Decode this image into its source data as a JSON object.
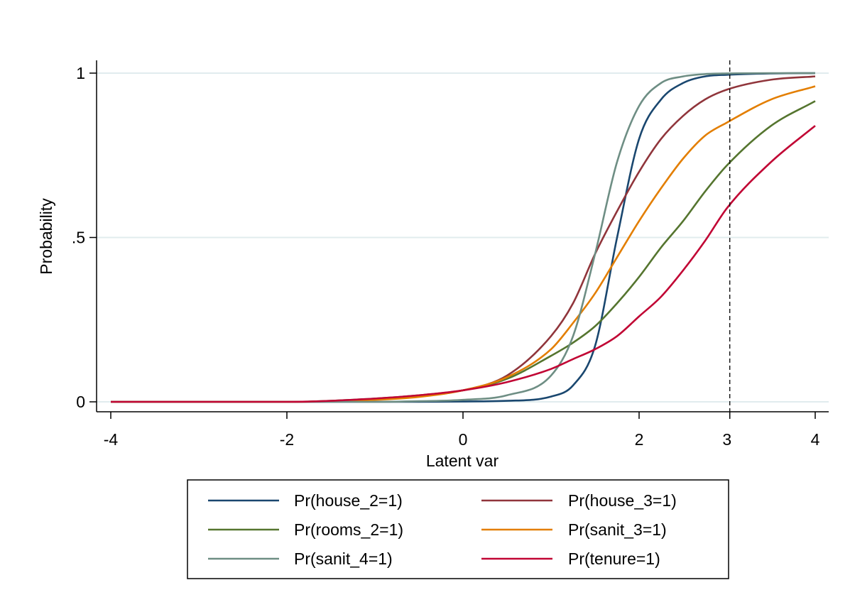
{
  "chart_data": {
    "type": "line",
    "title": "",
    "xlabel": "Latent var",
    "ylabel": "Probability",
    "xlim": [
      -4,
      4
    ],
    "ylim": [
      0,
      1
    ],
    "x_ticks": [
      {
        "value": -4,
        "label": "-4"
      },
      {
        "value": -2,
        "label": "-2"
      },
      {
        "value": 0,
        "label": "0"
      },
      {
        "value": 2,
        "label": "2"
      },
      {
        "value": 4,
        "label": "4"
      }
    ],
    "y_ticks": [
      {
        "value": 0,
        "label": "0"
      },
      {
        "value": 0.5,
        "label": ".5"
      },
      {
        "value": 1,
        "label": "1"
      }
    ],
    "grid": "horizontal",
    "reference_line": {
      "x": 3.03,
      "label": "3",
      "style": "dashed"
    },
    "legend": {
      "placement": "bottom",
      "columns": 2
    },
    "series": [
      {
        "name": "Pr(house_2=1)",
        "color": "#1a476f",
        "x": [
          -4,
          -3,
          -2,
          -1,
          -0.5,
          0,
          0.5,
          1,
          1.25,
          1.5,
          1.75,
          2,
          2.25,
          2.5,
          2.75,
          3,
          3.5,
          4
        ],
        "y": [
          0,
          0,
          0,
          0,
          0,
          0.001,
          0.003,
          0.016,
          0.05,
          0.17,
          0.5,
          0.8,
          0.92,
          0.97,
          0.99,
          0.995,
          0.999,
          1
        ]
      },
      {
        "name": "Pr(house_3=1)",
        "color": "#90353b",
        "x": [
          -4,
          -3,
          -2,
          -1,
          -0.5,
          0,
          0.5,
          1,
          1.25,
          1.5,
          1.75,
          2,
          2.25,
          2.5,
          2.75,
          3,
          3.5,
          4
        ],
        "y": [
          0,
          0,
          0,
          0.008,
          0.018,
          0.035,
          0.08,
          0.2,
          0.3,
          0.45,
          0.58,
          0.7,
          0.8,
          0.87,
          0.92,
          0.95,
          0.98,
          0.99
        ]
      },
      {
        "name": "Pr(rooms_2=1)",
        "color": "#55752f",
        "x": [
          -4,
          -3,
          -2,
          -1,
          -0.5,
          0,
          0.5,
          1,
          1.25,
          1.5,
          1.75,
          2,
          2.25,
          2.5,
          2.75,
          3,
          3.5,
          4
        ],
        "y": [
          0,
          0,
          0,
          0.01,
          0.02,
          0.035,
          0.07,
          0.14,
          0.18,
          0.23,
          0.3,
          0.38,
          0.47,
          0.55,
          0.64,
          0.72,
          0.84,
          0.915
        ]
      },
      {
        "name": "Pr(sanit_3=1)",
        "color": "#e37e00",
        "x": [
          -4,
          -3,
          -2,
          -1,
          -0.5,
          0,
          0.5,
          1,
          1.25,
          1.5,
          1.75,
          2,
          2.25,
          2.5,
          2.75,
          3,
          3.5,
          4
        ],
        "y": [
          0,
          0,
          0,
          0.006,
          0.015,
          0.035,
          0.075,
          0.16,
          0.24,
          0.33,
          0.44,
          0.55,
          0.65,
          0.74,
          0.81,
          0.85,
          0.92,
          0.96
        ]
      },
      {
        "name": "Pr(sanit_4=1)",
        "color": "#6e8e84",
        "x": [
          -4,
          -3,
          -2,
          -1,
          -0.5,
          0,
          0.5,
          1,
          1.25,
          1.5,
          1.75,
          2,
          2.25,
          2.5,
          2.75,
          3,
          3.5,
          4
        ],
        "y": [
          0,
          0,
          0,
          0,
          0.002,
          0.006,
          0.02,
          0.08,
          0.2,
          0.45,
          0.73,
          0.9,
          0.97,
          0.99,
          0.997,
          0.999,
          1,
          1
        ]
      },
      {
        "name": "Pr(tenure=1)",
        "color": "#c10534",
        "x": [
          -4,
          -3,
          -2,
          -1,
          -0.5,
          0,
          0.5,
          1,
          1.25,
          1.5,
          1.75,
          2,
          2.25,
          2.5,
          2.75,
          3,
          3.5,
          4
        ],
        "y": [
          0,
          0,
          0,
          0.01,
          0.02,
          0.035,
          0.06,
          0.1,
          0.13,
          0.16,
          0.2,
          0.26,
          0.32,
          0.4,
          0.49,
          0.59,
          0.73,
          0.84
        ]
      }
    ]
  }
}
